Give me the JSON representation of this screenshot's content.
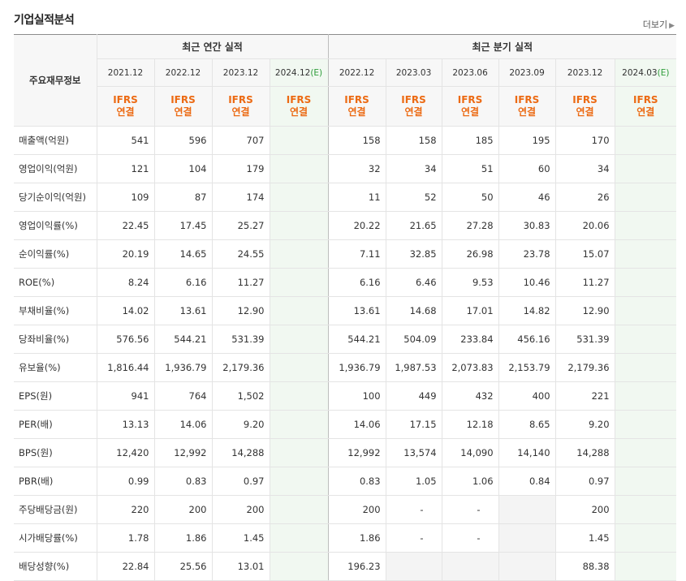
{
  "page": {
    "title": "기업실적분석",
    "more": "더보기"
  },
  "header": {
    "corner": "주요재무정보",
    "annual_group": "최근 연간 실적",
    "quarter_group": "최근 분기 실적",
    "annual_periods": [
      "2021.12",
      "2022.12",
      "2023.12",
      "2024.12(E)"
    ],
    "quarter_periods": [
      "2022.12",
      "2023.03",
      "2023.06",
      "2023.09",
      "2023.12",
      "2024.03(E)"
    ],
    "ifrs_line1": "IFRS",
    "ifrs_line2": "연결"
  },
  "rows": [
    {
      "label": "매출액(억원)",
      "annual": [
        "541",
        "596",
        "707",
        ""
      ],
      "quarter": [
        "158",
        "158",
        "185",
        "195",
        "170",
        ""
      ]
    },
    {
      "label": "영업이익(억원)",
      "annual": [
        "121",
        "104",
        "179",
        ""
      ],
      "quarter": [
        "32",
        "34",
        "51",
        "60",
        "34",
        ""
      ]
    },
    {
      "label": "당기순이익(억원)",
      "annual": [
        "109",
        "87",
        "174",
        ""
      ],
      "quarter": [
        "11",
        "52",
        "50",
        "46",
        "26",
        ""
      ]
    },
    {
      "label": "영업이익률(%)",
      "annual": [
        "22.45",
        "17.45",
        "25.27",
        ""
      ],
      "quarter": [
        "20.22",
        "21.65",
        "27.28",
        "30.83",
        "20.06",
        ""
      ]
    },
    {
      "label": "순이익률(%)",
      "annual": [
        "20.19",
        "14.65",
        "24.55",
        ""
      ],
      "quarter": [
        "7.11",
        "32.85",
        "26.98",
        "23.78",
        "15.07",
        ""
      ]
    },
    {
      "label": "ROE(%)",
      "annual": [
        "8.24",
        "6.16",
        "11.27",
        ""
      ],
      "quarter": [
        "6.16",
        "6.46",
        "9.53",
        "10.46",
        "11.27",
        ""
      ]
    },
    {
      "label": "부채비율(%)",
      "annual": [
        "14.02",
        "13.61",
        "12.90",
        ""
      ],
      "quarter": [
        "13.61",
        "14.68",
        "17.01",
        "14.82",
        "12.90",
        ""
      ]
    },
    {
      "label": "당좌비율(%)",
      "annual": [
        "576.56",
        "544.21",
        "531.39",
        ""
      ],
      "quarter": [
        "544.21",
        "504.09",
        "233.84",
        "456.16",
        "531.39",
        ""
      ]
    },
    {
      "label": "유보율(%)",
      "annual": [
        "1,816.44",
        "1,936.79",
        "2,179.36",
        ""
      ],
      "quarter": [
        "1,936.79",
        "1,987.53",
        "2,073.83",
        "2,153.79",
        "2,179.36",
        ""
      ]
    },
    {
      "label": "EPS(원)",
      "annual": [
        "941",
        "764",
        "1,502",
        ""
      ],
      "quarter": [
        "100",
        "449",
        "432",
        "400",
        "221",
        ""
      ]
    },
    {
      "label": "PER(배)",
      "annual": [
        "13.13",
        "14.06",
        "9.20",
        ""
      ],
      "quarter": [
        "14.06",
        "17.15",
        "12.18",
        "8.65",
        "9.20",
        ""
      ]
    },
    {
      "label": "BPS(원)",
      "annual": [
        "12,420",
        "12,992",
        "14,288",
        ""
      ],
      "quarter": [
        "12,992",
        "13,574",
        "14,090",
        "14,140",
        "14,288",
        ""
      ]
    },
    {
      "label": "PBR(배)",
      "annual": [
        "0.99",
        "0.83",
        "0.97",
        ""
      ],
      "quarter": [
        "0.83",
        "1.05",
        "1.06",
        "0.84",
        "0.97",
        ""
      ]
    },
    {
      "label": "주당배당금(원)",
      "annual": [
        "220",
        "200",
        "200",
        ""
      ],
      "quarter": [
        "200",
        "-",
        "-",
        "",
        "200",
        ""
      ]
    },
    {
      "label": "시가배당률(%)",
      "annual": [
        "1.78",
        "1.86",
        "1.45",
        ""
      ],
      "quarter": [
        "1.86",
        "-",
        "-",
        "",
        "1.45",
        ""
      ]
    },
    {
      "label": "배당성향(%)",
      "annual": [
        "22.84",
        "25.56",
        "13.01",
        ""
      ],
      "quarter": [
        "196.23",
        "",
        "",
        "",
        "88.38",
        ""
      ]
    }
  ]
}
